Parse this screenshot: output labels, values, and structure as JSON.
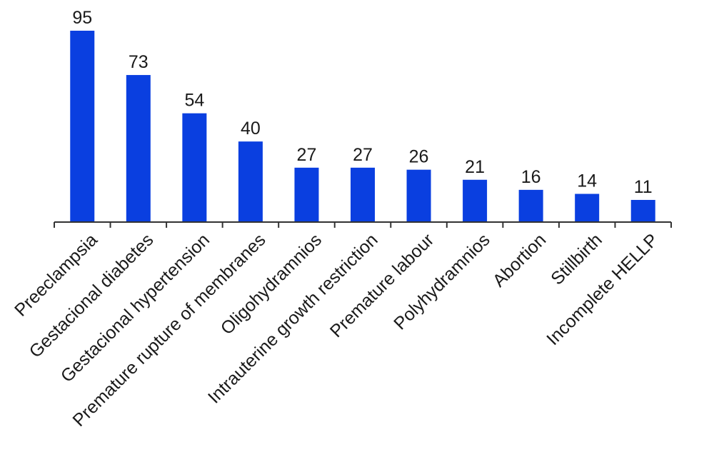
{
  "chart_data": {
    "type": "bar",
    "title": "",
    "xlabel": "",
    "ylabel": "",
    "ylim": [
      0,
      95
    ],
    "grid": false,
    "legend": "none",
    "bar_color": "#0a3fe0",
    "categories": [
      "Preeclampsia",
      "Gestacional diabetes",
      "Gestacional hypertension",
      "Premature rupture of membranes",
      "Oligohydramnios",
      "Intrauterine growth restriction",
      "Premature labour",
      "Polyhydramnios",
      "Abortion",
      "Stillbirth",
      "Incomplete HELLP"
    ],
    "values": [
      95,
      73,
      54,
      40,
      27,
      27,
      26,
      21,
      16,
      14,
      11
    ],
    "value_labels": [
      "95",
      "73",
      "54",
      "40",
      "27",
      "27",
      "26",
      "21",
      "16",
      "14",
      "11"
    ]
  }
}
